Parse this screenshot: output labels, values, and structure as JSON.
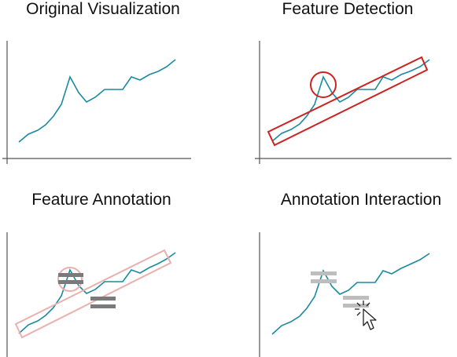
{
  "panels": [
    {
      "id": "original",
      "title": "Original Visualization"
    },
    {
      "id": "detection",
      "title": "Feature Detection"
    },
    {
      "id": "annotation",
      "title": "Feature Annotation"
    },
    {
      "id": "interaction",
      "title": "Annotation Interaction"
    }
  ],
  "colors": {
    "line": "#1a8a9e",
    "axis": "#555555",
    "highlight": "#cc2222",
    "highlight_faded": "#eab0ad",
    "annotation_mark": "#7a7a7a",
    "annotation_mark_faded": "#bdbdbd"
  },
  "icons": [
    "cursor-click-icon"
  ]
}
